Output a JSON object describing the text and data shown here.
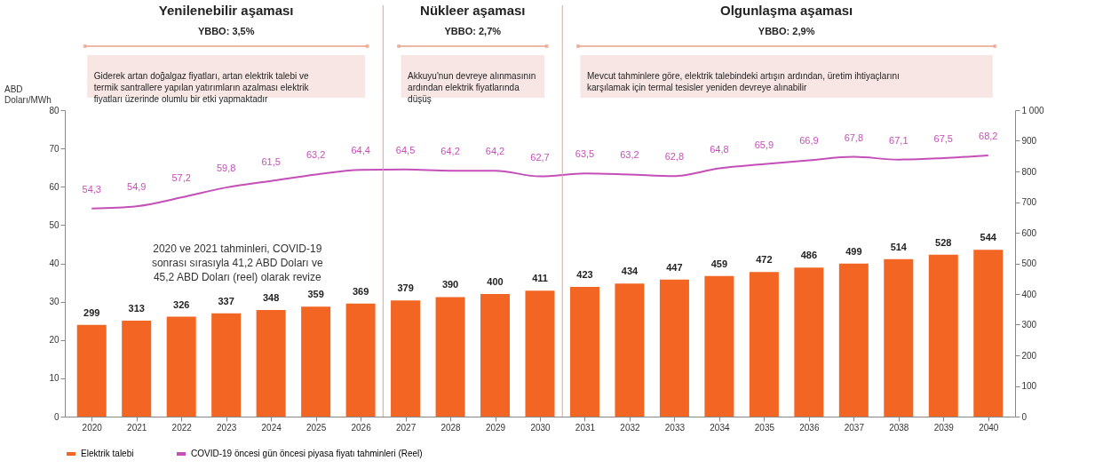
{
  "chart_data": {
    "type": "bar",
    "annotations": [
      "Yenilenebilir aşaması",
      "Nükleer aşaması",
      "Olgunlaşma aşaması",
      "YBBO: 3,5%",
      "YBBO: 2,7%",
      "YBBO: 2,9%",
      "Giderek artan doğalgaz fiyatları, artan elektrik talebi ve termik santrallere yapılan yatırımların azalması elektrik fiyatları üzerinde olumlu bir etki yapmaktadır",
      "Akkuyu'nun devreye alınmasının ardından elektrik fiyatlarında düşüş",
      "Mevcut tahminlere göre, elektrik talebindeki artışın ardından, üretim ihtiyaçlarını karşılamak için termal tesisler yeniden devreye alınabilir",
      "2020 ve 2021 tahminleri, COVID-19 sonrası sırasıyla 41,2 ABD Doları ve 45,2 ABD Doları (reel) olarak revize"
    ],
    "ylabel": "ABD Doları/MWh",
    "x": [
      2020,
      2021,
      2022,
      2023,
      2024,
      2025,
      2026,
      2027,
      2028,
      2029,
      2030,
      2031,
      2032,
      2033,
      2034,
      2035,
      2036,
      2037,
      2038,
      2039,
      2040
    ],
    "xlim": [
      2019.5,
      2040.5
    ],
    "xticks": [
      2020,
      2021,
      2022,
      2023,
      2024,
      2025,
      2026,
      2027,
      2028,
      2029,
      2030,
      2031,
      2032,
      2033,
      2034,
      2035,
      2036,
      2037,
      2038,
      2039,
      2040
    ],
    "ylim": [
      0,
      80
    ],
    "yticks": [
      0,
      10,
      20,
      30,
      40,
      50,
      60,
      70,
      80
    ],
    "y2lim": [
      0,
      1000
    ],
    "y2ticks": [
      0,
      100,
      200,
      300,
      400,
      500,
      600,
      700,
      800,
      900,
      {
        "value": 1000,
        "label": "1 000"
      }
    ],
    "series": [
      {
        "name": "Elektrik talebi",
        "axis": "y2",
        "color": "#f26522",
        "values": [
          299,
          313,
          326,
          337,
          348,
          359,
          369,
          379,
          390,
          400,
          411,
          423,
          434,
          447,
          459,
          472,
          486,
          499,
          514,
          528,
          544
        ],
        "value_labels": [
          "299",
          "313",
          "326",
          "337",
          "348",
          "359",
          "369",
          "379",
          "390",
          "400",
          "411",
          "423",
          "434",
          "447",
          "459",
          "472",
          "486",
          "499",
          "514",
          "528",
          "544"
        ]
      },
      {
        "name": "COVID-19 öncesi gün öncesi piyasa fiyatı tahminleri (Reel)",
        "type": "line",
        "axis": "y",
        "color": "#c44fb8",
        "values": [
          54.3,
          54.9,
          57.2,
          59.8,
          61.5,
          63.2,
          64.4,
          64.5,
          64.2,
          64.2,
          62.7,
          63.5,
          63.2,
          62.8,
          64.8,
          65.9,
          66.9,
          67.8,
          67.1,
          67.5,
          68.2
        ],
        "value_labels": [
          "54,3",
          "54,9",
          "57,2",
          "59,8",
          "61,5",
          "63,2",
          "64,4",
          "64,5",
          "64,2",
          "64,2",
          "62,7",
          "63,5",
          "63,2",
          "62,8",
          "64,8",
          "65,9",
          "66,9",
          "67,8",
          "67,1",
          "67,5",
          "68,2"
        ]
      }
    ],
    "ref_lines": [
      {
        "axis": "x",
        "value": 2026.5,
        "color": "#e8a088"
      },
      {
        "axis": "x",
        "value": 2030.5,
        "color": "#e8a088"
      }
    ],
    "legend": "bottom",
    "grid": false,
    "marker": "none",
    "line_style": "solid"
  }
}
